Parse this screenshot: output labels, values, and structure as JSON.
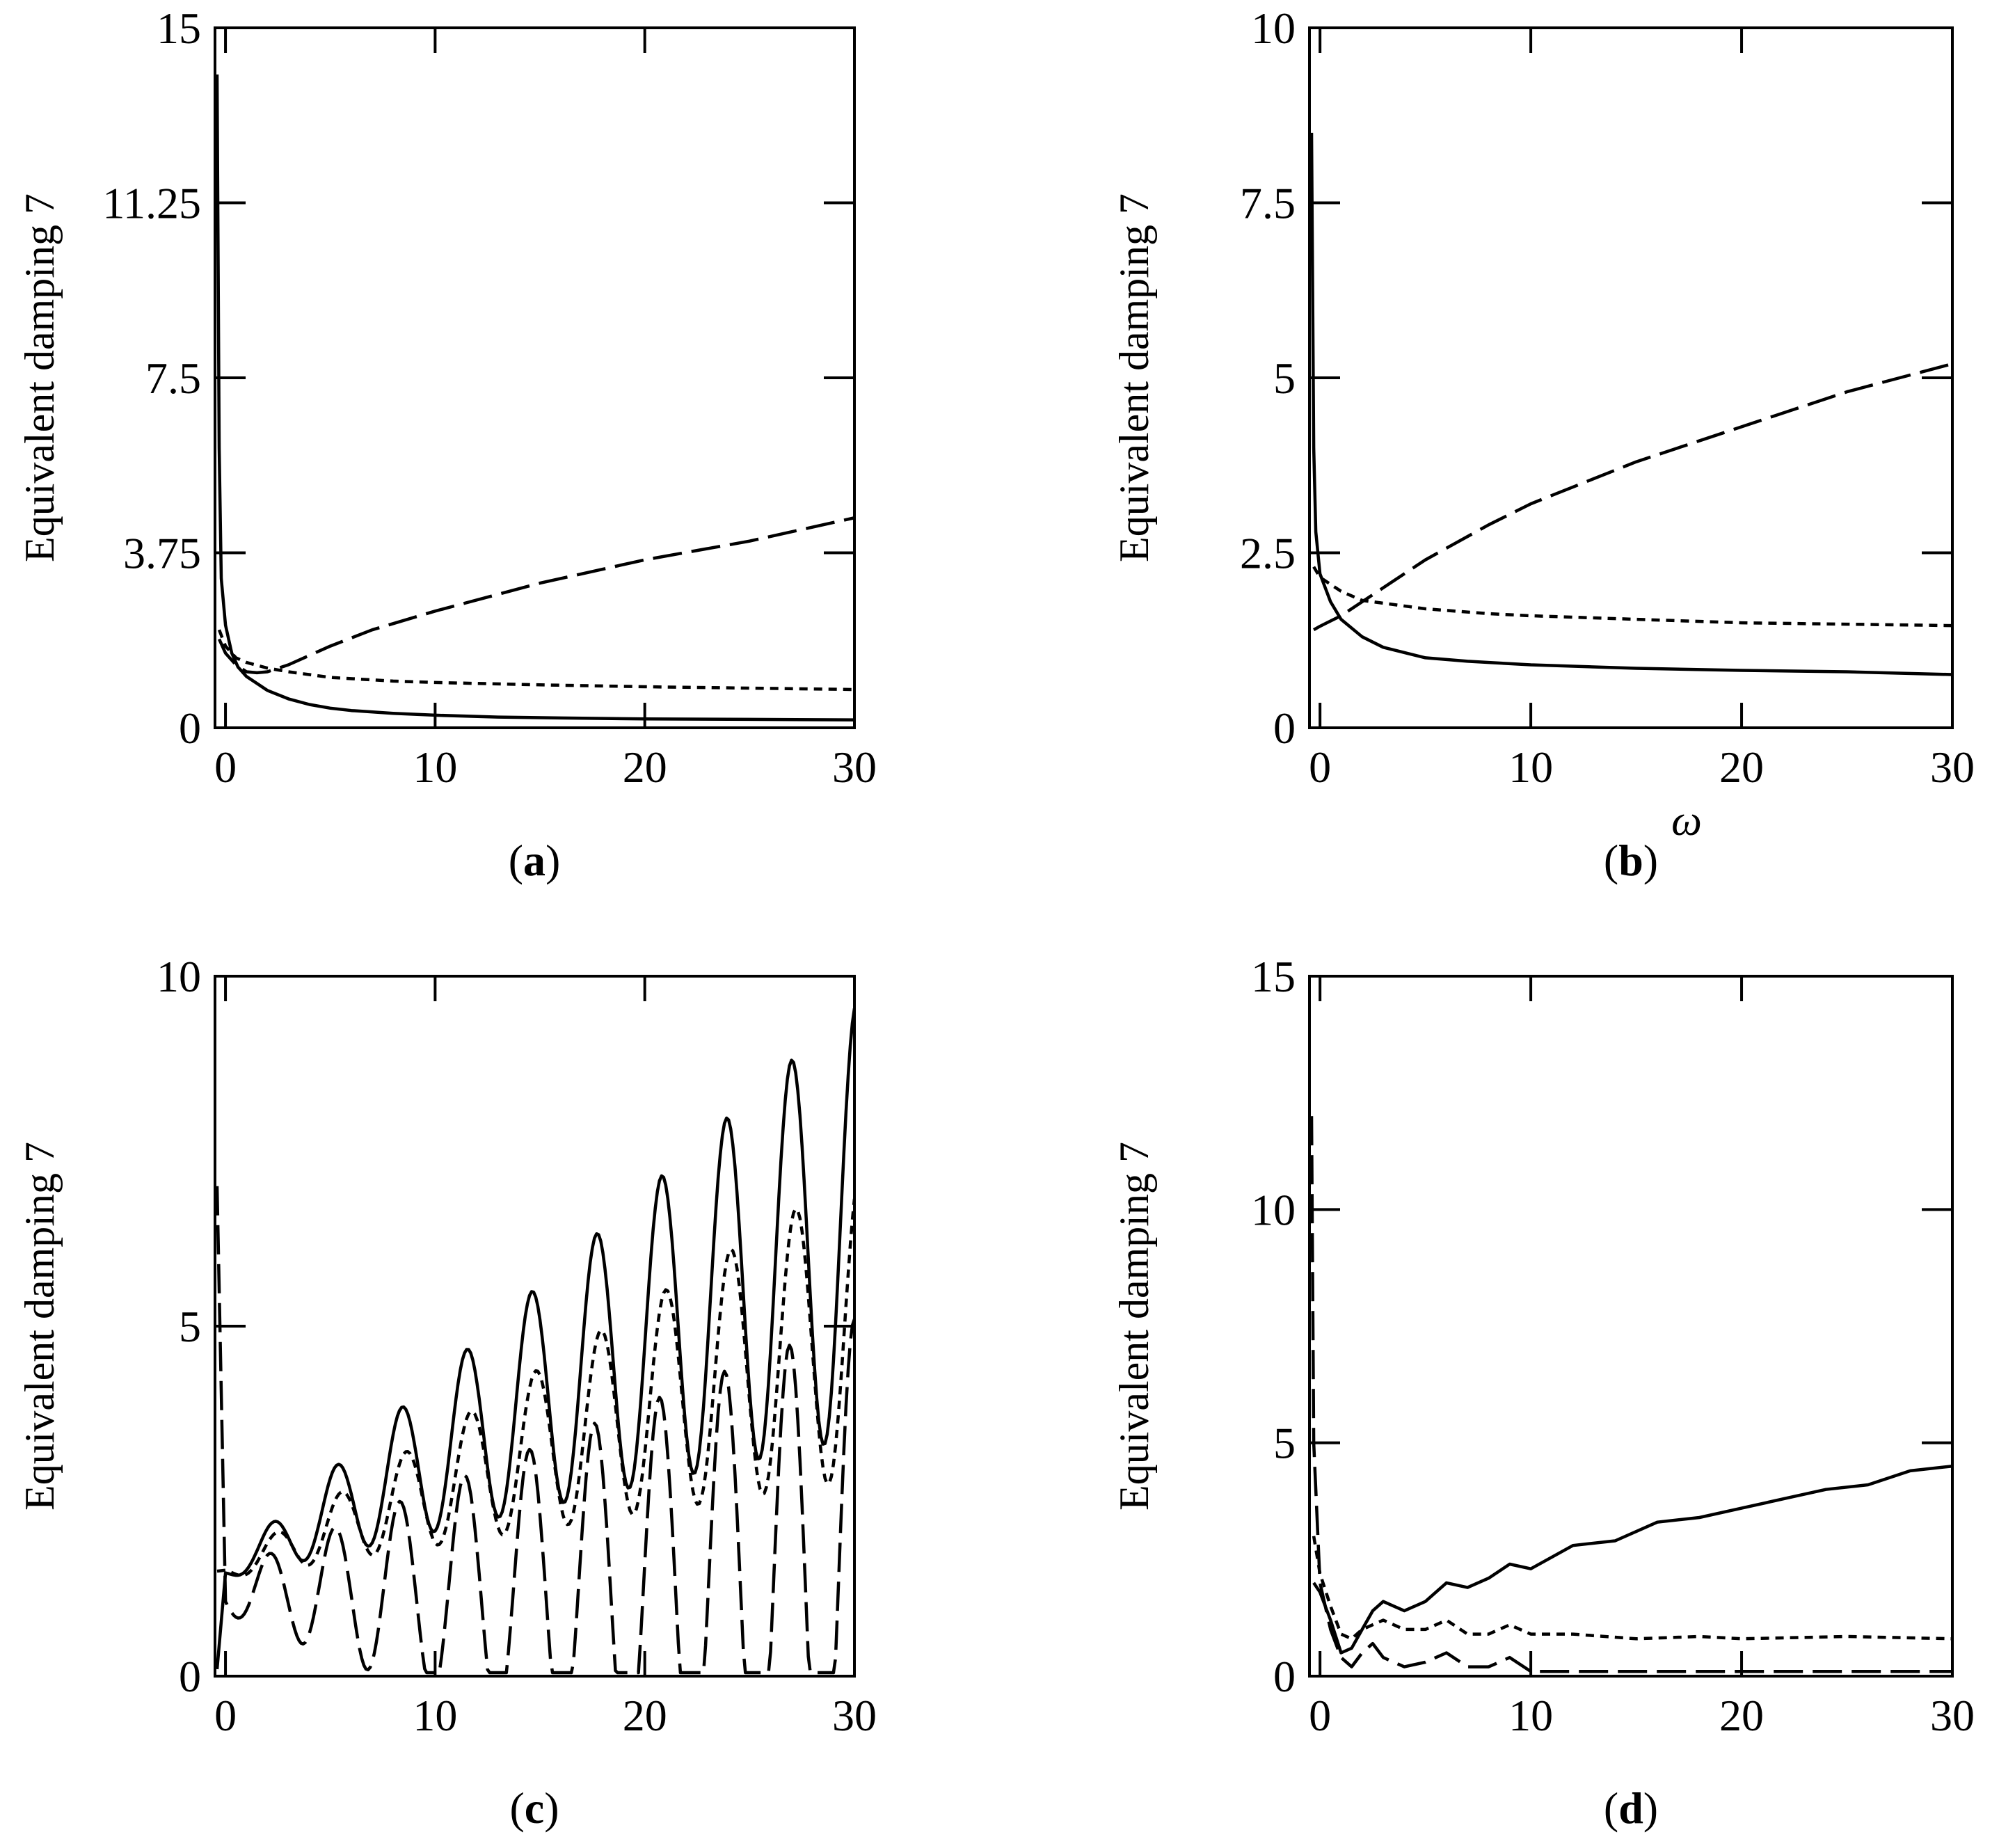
{
  "chart_data": [
    {
      "panel": "a",
      "type": "line",
      "title": "",
      "xlabel": "",
      "ylabel": "Equivalent damping 7",
      "xlim": [
        -0.5,
        30
      ],
      "ylim": [
        0,
        15
      ],
      "xticks": [
        0,
        10,
        20,
        30
      ],
      "yticks": [
        0,
        3.75,
        7.5,
        11.25,
        15
      ],
      "ytick_labels": [
        "0",
        "3.75",
        "7.5",
        "11.25",
        "15"
      ],
      "caption": {
        "open": "(",
        "letter": "a",
        "close": ")"
      },
      "grid": false,
      "series": [
        {
          "name": "solid",
          "style": "solid",
          "x": [
            -0.4,
            -0.3,
            -0.2,
            0,
            0.3,
            0.6,
            1,
            1.5,
            2,
            3,
            4,
            5,
            6,
            8,
            10,
            13,
            16,
            20,
            25,
            30
          ],
          "y": [
            14,
            6,
            3.2,
            2.2,
            1.6,
            1.3,
            1.1,
            0.95,
            0.8,
            0.62,
            0.5,
            0.42,
            0.37,
            0.31,
            0.27,
            0.23,
            0.21,
            0.19,
            0.18,
            0.17
          ]
        },
        {
          "name": "dashed",
          "style": "dashed",
          "x": [
            -0.3,
            0,
            0.5,
            1,
            1.5,
            2,
            3,
            5,
            7,
            10,
            15,
            20,
            25,
            30
          ],
          "y": [
            1.9,
            1.6,
            1.35,
            1.2,
            1.18,
            1.2,
            1.35,
            1.75,
            2.1,
            2.5,
            3.1,
            3.6,
            4.0,
            4.5
          ]
        },
        {
          "name": "dotted",
          "style": "dotted",
          "x": [
            -0.3,
            0,
            0.5,
            1,
            2,
            3,
            5,
            8,
            10,
            15,
            20,
            25,
            30
          ],
          "y": [
            2.1,
            1.75,
            1.5,
            1.4,
            1.28,
            1.2,
            1.08,
            1.0,
            0.97,
            0.92,
            0.88,
            0.85,
            0.82
          ]
        }
      ]
    },
    {
      "panel": "b",
      "type": "line",
      "title": "",
      "xlabel": "ω",
      "ylabel": "Equivalent damping 7",
      "xlim": [
        -0.5,
        30
      ],
      "ylim": [
        0,
        10
      ],
      "xticks": [
        0,
        10,
        20,
        30
      ],
      "yticks": [
        0,
        2.5,
        5,
        7.5,
        10
      ],
      "ytick_labels": [
        "0",
        "2.5",
        "5",
        "7.5",
        "10"
      ],
      "caption": {
        "open": "(",
        "letter": "b",
        "close": ")"
      },
      "grid": false,
      "series": [
        {
          "name": "solid",
          "style": "solid",
          "x": [
            -0.4,
            -0.3,
            -0.2,
            0,
            0.5,
            1,
            2,
            3,
            5,
            7,
            10,
            15,
            20,
            25,
            30
          ],
          "y": [
            8.5,
            4,
            2.8,
            2.2,
            1.8,
            1.55,
            1.3,
            1.15,
            1.0,
            0.95,
            0.9,
            0.85,
            0.82,
            0.8,
            0.76
          ]
        },
        {
          "name": "dashed",
          "style": "dashed",
          "x": [
            -0.3,
            0,
            1,
            2,
            3,
            5,
            8,
            10,
            15,
            20,
            25,
            30
          ],
          "y": [
            1.4,
            1.45,
            1.6,
            1.8,
            2.0,
            2.4,
            2.9,
            3.2,
            3.8,
            4.3,
            4.8,
            5.2
          ]
        },
        {
          "name": "dotted",
          "style": "dotted",
          "x": [
            -0.3,
            0,
            1,
            2,
            3,
            5,
            8,
            10,
            15,
            20,
            25,
            30
          ],
          "y": [
            2.3,
            2.15,
            1.95,
            1.82,
            1.78,
            1.7,
            1.63,
            1.6,
            1.55,
            1.5,
            1.48,
            1.46
          ]
        }
      ]
    },
    {
      "panel": "c",
      "type": "line",
      "title": "",
      "xlabel": "",
      "ylabel": "Equivalent damping 7",
      "xlim": [
        -0.5,
        30
      ],
      "ylim": [
        0,
        10
      ],
      "xticks": [
        0,
        10,
        20,
        30
      ],
      "yticks": [
        0,
        5,
        10
      ],
      "ytick_labels": [
        "0",
        "5",
        "10"
      ],
      "caption": {
        "open": "(",
        "letter": "c",
        "close": ")"
      },
      "grid": false,
      "series": [
        {
          "name": "solid",
          "style": "solid",
          "generator": "oscillating",
          "base": 1.5,
          "trend": 0.05,
          "amp0": 0.1,
          "amp_rate": 0.1,
          "period": 3.1,
          "phase": 3.4,
          "start_y": 0.1
        },
        {
          "name": "dotted",
          "style": "dotted",
          "generator": "oscillating",
          "base": 1.5,
          "trend": 0.035,
          "amp0": 0.1,
          "amp_rate": 0.07,
          "period": 3.1,
          "phase": 3.0,
          "start_y": 1.5
        },
        {
          "name": "dashed",
          "style": "dashed",
          "generator": "oscillating",
          "base": 1.2,
          "trend": 0.0,
          "amp0": 0.3,
          "amp_rate": 0.12,
          "period": 3.1,
          "phase": 3.6,
          "start_y": 7.0
        }
      ]
    },
    {
      "panel": "d",
      "type": "line",
      "title": "",
      "xlabel": "",
      "ylabel": "Equivalent damping 7",
      "xlim": [
        -0.5,
        30
      ],
      "ylim": [
        0,
        15
      ],
      "xticks": [
        0,
        10,
        20,
        30
      ],
      "yticks": [
        0,
        5,
        10,
        15
      ],
      "ytick_labels": [
        "0",
        "5",
        "10",
        "15"
      ],
      "caption": {
        "open": "(",
        "letter": "d",
        "close": ")"
      },
      "grid": false,
      "series": [
        {
          "name": "solid",
          "style": "solid",
          "x": [
            -0.3,
            0,
            0.5,
            1,
            1.5,
            2,
            2.5,
            3,
            3.5,
            4,
            5,
            6,
            7,
            8,
            9,
            10,
            12,
            14,
            16,
            18,
            20,
            22,
            24,
            26,
            28,
            30
          ],
          "y": [
            2.0,
            1.8,
            1.2,
            0.5,
            0.6,
            1.0,
            1.4,
            1.6,
            1.5,
            1.4,
            1.6,
            2.0,
            1.9,
            2.1,
            2.4,
            2.3,
            2.8,
            2.9,
            3.3,
            3.4,
            3.6,
            3.8,
            4.0,
            4.1,
            4.4,
            4.5
          ]
        },
        {
          "name": "dotted",
          "style": "dotted",
          "x": [
            -0.3,
            0,
            0.5,
            1,
            1.5,
            2,
            3,
            4,
            5,
            6,
            7,
            8,
            9,
            10,
            12,
            15,
            18,
            20,
            25,
            30
          ],
          "y": [
            3.0,
            2.2,
            1.5,
            0.9,
            0.8,
            1.0,
            1.2,
            1.0,
            1.0,
            1.2,
            0.9,
            0.9,
            1.1,
            0.9,
            0.9,
            0.8,
            0.85,
            0.8,
            0.85,
            0.8
          ]
        },
        {
          "name": "dashed",
          "style": "dashed",
          "x": [
            -0.4,
            -0.3,
            0,
            0.5,
            1,
            1.5,
            2,
            2.5,
            3,
            4,
            5,
            6,
            7,
            8,
            9,
            10,
            12,
            15,
            20,
            25,
            30
          ],
          "y": [
            12,
            5,
            2.0,
            1.0,
            0.4,
            0.2,
            0.5,
            0.7,
            0.4,
            0.2,
            0.3,
            0.5,
            0.2,
            0.2,
            0.4,
            0.1,
            0.1,
            0.1,
            0.1,
            0.1,
            0.1
          ]
        }
      ]
    }
  ]
}
